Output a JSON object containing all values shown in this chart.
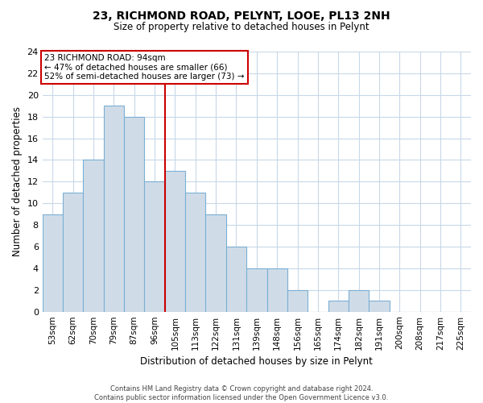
{
  "title": "23, RICHMOND ROAD, PELYNT, LOOE, PL13 2NH",
  "subtitle": "Size of property relative to detached houses in Pelynt",
  "xlabel": "Distribution of detached houses by size in Pelynt",
  "ylabel": "Number of detached properties",
  "bar_labels": [
    "53sqm",
    "62sqm",
    "70sqm",
    "79sqm",
    "87sqm",
    "96sqm",
    "105sqm",
    "113sqm",
    "122sqm",
    "131sqm",
    "139sqm",
    "148sqm",
    "156sqm",
    "165sqm",
    "174sqm",
    "182sqm",
    "191sqm",
    "200sqm",
    "208sqm",
    "217sqm",
    "225sqm"
  ],
  "bar_values": [
    9,
    11,
    14,
    19,
    18,
    12,
    13,
    11,
    9,
    6,
    4,
    4,
    2,
    0,
    1,
    2,
    1,
    0,
    0,
    0,
    0
  ],
  "bar_color": "#cfdce8",
  "bar_edge_color": "#7bafd4",
  "vline_color": "#cc0000",
  "vline_x_index": 5,
  "ylim": [
    0,
    24
  ],
  "yticks": [
    0,
    2,
    4,
    6,
    8,
    10,
    12,
    14,
    16,
    18,
    20,
    22,
    24
  ],
  "annotation_line1": "23 RICHMOND ROAD: 94sqm",
  "annotation_line2": "← 47% of detached houses are smaller (66)",
  "annotation_line3": "52% of semi-detached houses are larger (73) →",
  "footnote": "Contains HM Land Registry data © Crown copyright and database right 2024.\nContains public sector information licensed under the Open Government Licence v3.0.",
  "background_color": "#ffffff",
  "grid_color": "#c8d8e8"
}
